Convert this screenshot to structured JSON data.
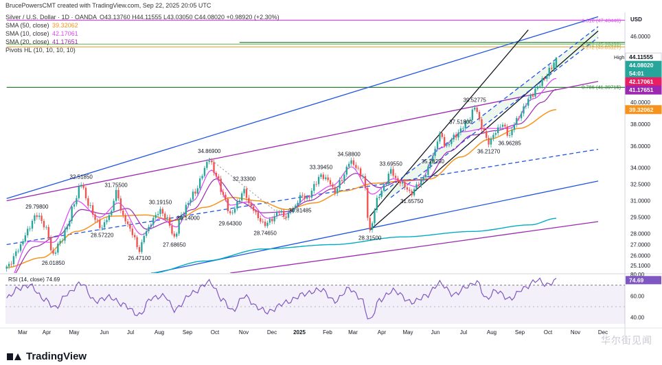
{
  "header": {
    "title": "Silver / U.S. Dollar · 1D · OANDA",
    "creator": "BrucePowersCMT created with TradingView.com, Sep 22, 2025 20:05 UTC",
    "ohlc": "O43.13760 H44.11555 L43.03050 C44.08020 +0.98920 (+2.30%)",
    "studies": [
      {
        "label": "SMA (50, close)",
        "value": "39.32062",
        "color": "#f7931a"
      },
      {
        "label": "SMA (10, close)",
        "value": "42.17061",
        "color": "#d946ef"
      },
      {
        "label": "SMA (20, close)",
        "value": "41.17651",
        "color": "#9c27b0"
      },
      {
        "label": "Pivots HL (10, 10, 10, 10)",
        "value": "",
        "color": "#333333"
      }
    ]
  },
  "brand": "TradingView",
  "watermark": "华尔街见闻",
  "chart_data": {
    "type": "candlestick",
    "currency": "USD",
    "ylim": [
      24.4,
      48.2
    ],
    "x_ticks": [
      "Mar",
      "Apr",
      "May",
      "Jun",
      "Jul",
      "Aug",
      "Sep",
      "Oct",
      "Nov",
      "Dec",
      "2025",
      "Feb",
      "Mar",
      "Apr",
      "May",
      "Jun",
      "Jul",
      "Aug",
      "Sep",
      "Oct",
      "Nov",
      "Dec"
    ],
    "y_ticks": [
      25.1,
      26.0,
      27.0,
      28.0,
      29.5,
      31.0,
      32.5,
      34.0,
      36.0,
      38.0,
      40.0,
      42.0,
      44.0,
      46.0
    ],
    "y_tick_labels": [
      "25.1000",
      "26.0000",
      "27.0000",
      "28.0000",
      "29.5000",
      "31.0000",
      "32.5000",
      "34.0000",
      "36.0000",
      "38.0000",
      "40.0000",
      "42.0000",
      "44.0000",
      "46.0000"
    ],
    "anchors": [
      [
        0,
        24.9
      ],
      [
        5,
        26.5
      ],
      [
        9,
        28.3
      ],
      [
        13,
        29.8
      ],
      [
        17,
        28.4
      ],
      [
        20,
        26.0
      ],
      [
        23,
        27.3
      ],
      [
        26,
        28.6
      ],
      [
        29,
        30.9
      ],
      [
        32,
        32.5185
      ],
      [
        35,
        30.8
      ],
      [
        38,
        29.3
      ],
      [
        41,
        28.5722
      ],
      [
        44,
        29.6
      ],
      [
        47,
        31.755
      ],
      [
        50,
        29.6
      ],
      [
        54,
        28.0
      ],
      [
        57,
        26.471
      ],
      [
        60,
        28.3
      ],
      [
        63,
        29.3
      ],
      [
        66,
        30.1915
      ],
      [
        69,
        29.2
      ],
      [
        72,
        27.6865
      ],
      [
        75,
        29.6
      ],
      [
        78,
        30.9
      ],
      [
        81,
        31.8
      ],
      [
        84,
        33.4
      ],
      [
        87,
        34.869
      ],
      [
        90,
        33.2
      ],
      [
        93,
        31.6
      ],
      [
        96,
        29.643
      ],
      [
        99,
        30.8
      ],
      [
        102,
        31.9
      ],
      [
        105,
        30.4
      ],
      [
        108,
        29.5
      ],
      [
        111,
        28.7465
      ],
      [
        114,
        29.4
      ],
      [
        117,
        30.0
      ],
      [
        120,
        29.6
      ],
      [
        123,
        30.2
      ],
      [
        126,
        31.4
      ],
      [
        129,
        31.2
      ],
      [
        132,
        32.3
      ],
      [
        135,
        33.3945
      ],
      [
        138,
        32.8
      ],
      [
        141,
        31.9
      ],
      [
        144,
        32.9
      ],
      [
        147,
        34.588
      ],
      [
        150,
        34.1
      ],
      [
        153,
        33.2
      ],
      [
        156,
        28.315
      ],
      [
        159,
        31.0
      ],
      [
        162,
        32.4
      ],
      [
        165,
        33.6955
      ],
      [
        168,
        32.8
      ],
      [
        171,
        32.3
      ],
      [
        174,
        31.6575
      ],
      [
        177,
        32.6
      ],
      [
        180,
        33.4
      ],
      [
        183,
        35.2
      ],
      [
        186,
        37.0
      ],
      [
        189,
        36.0
      ],
      [
        192,
        36.8
      ],
      [
        195,
        37.5
      ],
      [
        198,
        38.3
      ],
      [
        201,
        39.5278
      ],
      [
        204,
        37.8
      ],
      [
        207,
        36.2127
      ],
      [
        210,
        37.4
      ],
      [
        213,
        37.9
      ],
      [
        216,
        36.96285
      ],
      [
        219,
        38.4
      ],
      [
        222,
        39.4
      ],
      [
        225,
        40.6
      ],
      [
        228,
        41.3
      ],
      [
        231,
        42.3
      ],
      [
        234,
        43.1
      ],
      [
        236,
        44.0802
      ]
    ],
    "last_bar_ohlc": {
      "open": 43.1376,
      "high": 44.11555,
      "low": 43.0305,
      "close": 44.0802
    },
    "sma10_anchors": [
      [
        0,
        23.4
      ],
      [
        10,
        27.3
      ],
      [
        20,
        27.2
      ],
      [
        30,
        31.0
      ],
      [
        40,
        29.5
      ],
      [
        48,
        30.8
      ],
      [
        58,
        27.9
      ],
      [
        66,
        29.4
      ],
      [
        73,
        28.6
      ],
      [
        80,
        31.0
      ],
      [
        88,
        33.8
      ],
      [
        96,
        30.6
      ],
      [
        104,
        30.9
      ],
      [
        112,
        29.4
      ],
      [
        120,
        29.8
      ],
      [
        130,
        31.4
      ],
      [
        140,
        32.4
      ],
      [
        148,
        34.1
      ],
      [
        157,
        31.6
      ],
      [
        166,
        33.0
      ],
      [
        176,
        32.3
      ],
      [
        186,
        35.8
      ],
      [
        196,
        37.3
      ],
      [
        206,
        37.6
      ],
      [
        216,
        37.6
      ],
      [
        226,
        40.3
      ],
      [
        236,
        42.17061
      ]
    ],
    "sma20_anchors": [
      [
        0,
        23.6
      ],
      [
        12,
        26.8
      ],
      [
        22,
        27.8
      ],
      [
        32,
        30.2
      ],
      [
        42,
        29.8
      ],
      [
        52,
        30.3
      ],
      [
        60,
        28.4
      ],
      [
        70,
        29.1
      ],
      [
        80,
        30.2
      ],
      [
        90,
        33.0
      ],
      [
        100,
        30.9
      ],
      [
        110,
        29.9
      ],
      [
        120,
        30.0
      ],
      [
        130,
        31.0
      ],
      [
        140,
        32.1
      ],
      [
        150,
        33.5
      ],
      [
        160,
        32.2
      ],
      [
        170,
        32.9
      ],
      [
        180,
        32.9
      ],
      [
        190,
        35.5
      ],
      [
        200,
        37.0
      ],
      [
        210,
        37.4
      ],
      [
        220,
        38.0
      ],
      [
        230,
        40.0
      ],
      [
        236,
        41.17651
      ]
    ],
    "sma50_anchors": [
      [
        0,
        24.9
      ],
      [
        15,
        25.8
      ],
      [
        30,
        28.2
      ],
      [
        45,
        29.6
      ],
      [
        60,
        29.7
      ],
      [
        72,
        29.2
      ],
      [
        85,
        30.4
      ],
      [
        97,
        31.3
      ],
      [
        108,
        31.0
      ],
      [
        120,
        30.2
      ],
      [
        132,
        30.8
      ],
      [
        145,
        31.9
      ],
      [
        158,
        32.6
      ],
      [
        170,
        32.8
      ],
      [
        182,
        33.0
      ],
      [
        195,
        35.0
      ],
      [
        207,
        36.6
      ],
      [
        220,
        37.6
      ],
      [
        236,
        39.32062
      ]
    ],
    "long_ma_anchors": [
      [
        62,
        24.4
      ],
      [
        85,
        25.5
      ],
      [
        110,
        26.6
      ],
      [
        140,
        27.0
      ],
      [
        170,
        27.7
      ],
      [
        200,
        28.2
      ],
      [
        225,
        28.8
      ],
      [
        236,
        29.4
      ]
    ],
    "rsi": {
      "label": "RSI (14, close)",
      "value": "74.69",
      "ylim": [
        34,
        80
      ],
      "ticks": [
        40,
        60,
        80
      ],
      "upper": 70,
      "lower": 30,
      "anchors": [
        [
          0,
          58
        ],
        [
          5,
          67
        ],
        [
          10,
          70
        ],
        [
          16,
          57
        ],
        [
          21,
          49
        ],
        [
          26,
          62
        ],
        [
          32,
          72
        ],
        [
          38,
          55
        ],
        [
          44,
          59
        ],
        [
          50,
          52
        ],
        [
          57,
          42
        ],
        [
          62,
          58
        ],
        [
          68,
          60
        ],
        [
          72,
          47
        ],
        [
          80,
          63
        ],
        [
          87,
          73
        ],
        [
          93,
          56
        ],
        [
          97,
          46
        ],
        [
          102,
          60
        ],
        [
          108,
          49
        ],
        [
          112,
          45
        ],
        [
          120,
          54
        ],
        [
          128,
          62
        ],
        [
          135,
          66
        ],
        [
          141,
          55
        ],
        [
          147,
          67
        ],
        [
          152,
          58
        ],
        [
          156,
          37
        ],
        [
          160,
          56
        ],
        [
          166,
          65
        ],
        [
          174,
          54
        ],
        [
          180,
          60
        ],
        [
          186,
          72
        ],
        [
          192,
          61
        ],
        [
          198,
          69
        ],
        [
          202,
          73
        ],
        [
          206,
          57
        ],
        [
          210,
          65
        ],
        [
          216,
          57
        ],
        [
          222,
          67
        ],
        [
          228,
          75
        ],
        [
          232,
          70
        ],
        [
          236,
          74.69
        ]
      ]
    },
    "trendlines": [
      {
        "name": "Upper Channel",
        "color": "#1e53e5",
        "style": "solid",
        "from": [
          0,
          31.2
        ],
        "to": [
          254,
          47.8
        ]
      },
      {
        "name": "Lower Channel",
        "color": "#1e53e5",
        "style": "solid",
        "from": [
          63,
          24.4
        ],
        "to": [
          254,
          32.8
        ]
      },
      {
        "name": "Dashed Mid",
        "color": "#1e53e5",
        "style": "dashed",
        "from": [
          0,
          27.0
        ],
        "to": [
          254,
          35.7
        ]
      },
      {
        "name": "Purple Upper",
        "color": "#9c27b0",
        "style": "solid",
        "from": [
          0,
          31.0
        ],
        "to": [
          254,
          41.9
        ]
      },
      {
        "name": "Purple Lower",
        "color": "#9c27b0",
        "style": "solid",
        "from": [
          96,
          24.4
        ],
        "to": [
          254,
          29.1
        ]
      },
      {
        "name": "Rising Channel Top",
        "color": "#131722",
        "style": "solid",
        "from": [
          156,
          29.6
        ],
        "to": [
          224,
          46.6
        ]
      },
      {
        "name": "Rising Channel Bottom",
        "color": "#131722",
        "style": "solid",
        "from": [
          156,
          28.315
        ],
        "to": [
          254,
          46.5
        ]
      },
      {
        "name": "Rising Channel Upper Dashed",
        "color": "#1e53e5",
        "style": "dashed",
        "from": [
          160,
          31.5
        ],
        "to": [
          254,
          46.9
        ]
      },
      {
        "name": "Rising Channel Mid Dashed",
        "color": "#1e53e5",
        "style": "dashed",
        "from": [
          165,
          31.3
        ],
        "to": [
          254,
          45.9
        ]
      },
      {
        "name": "Declining Dotted",
        "color": "#8a8a8a",
        "style": "dotted",
        "from": [
          87,
          34.869
        ],
        "to": [
          120,
          29.3
        ]
      }
    ],
    "horizontal_lines": [
      {
        "name": "Resistance",
        "color": "#2e7d32",
        "value": 41.35,
        "from": 0
      },
      {
        "name": "Fib 1.618",
        "color": "#d946ef",
        "value": 47.48,
        "from": 0
      },
      {
        "name": "Fib Band A",
        "color": "#e8a33b",
        "value": 45.05,
        "from": 0
      },
      {
        "name": "Fib Band B",
        "color": "#6bbf59",
        "value": 45.3,
        "from": 0
      },
      {
        "name": "Fib Band C",
        "color": "#2e7d32",
        "value": 45.45,
        "from": 100
      }
    ],
    "price_labels": [
      {
        "text": "32.51850",
        "i": 32,
        "v": 32.5185,
        "pos": "above"
      },
      {
        "text": "29.79800",
        "i": 13,
        "v": 29.798,
        "pos": "above"
      },
      {
        "text": "31.75500",
        "i": 47,
        "v": 31.755,
        "pos": "above"
      },
      {
        "text": "30.19150",
        "i": 66,
        "v": 30.1915,
        "pos": "above"
      },
      {
        "text": "34.86900",
        "i": 87,
        "v": 34.869,
        "pos": "above"
      },
      {
        "text": "32.33300",
        "i": 102,
        "v": 32.333,
        "pos": "above"
      },
      {
        "text": "33.39450",
        "i": 135,
        "v": 33.3945,
        "pos": "above"
      },
      {
        "text": "34.58800",
        "i": 147,
        "v": 34.588,
        "pos": "above"
      },
      {
        "text": "33.69550",
        "i": 165,
        "v": 33.6955,
        "pos": "above"
      },
      {
        "text": "37.51800",
        "i": 195,
        "v": 37.518,
        "pos": "above"
      },
      {
        "text": "39.52775",
        "i": 201,
        "v": 39.52775,
        "pos": "above"
      },
      {
        "text": "26.01850",
        "i": 20,
        "v": 26.0185,
        "pos": "below"
      },
      {
        "text": "28.57220",
        "i": 41,
        "v": 28.5722,
        "pos": "below"
      },
      {
        "text": "26.47100",
        "i": 57,
        "v": 26.471,
        "pos": "below"
      },
      {
        "text": "27.68650",
        "i": 72,
        "v": 27.6865,
        "pos": "below"
      },
      {
        "text": "29.64300",
        "i": 96,
        "v": 29.643,
        "pos": "below"
      },
      {
        "text": "28.74650",
        "i": 111,
        "v": 28.7465,
        "pos": "below"
      },
      {
        "text": "28.31500",
        "i": 156,
        "v": 28.315,
        "pos": "below"
      },
      {
        "text": "31.65750",
        "i": 174,
        "v": 31.6575,
        "pos": "below"
      },
      {
        "text": "36.21270",
        "i": 207,
        "v": 36.2127,
        "pos": "below"
      },
      {
        "text": "36.96285",
        "i": 216,
        "v": 36.96285,
        "pos": "below"
      },
      {
        "text": "30.14000",
        "i": 78,
        "v": 30.14,
        "pos": "below"
      },
      {
        "text": "30.81485",
        "i": 126,
        "v": 30.81485,
        "pos": "below"
      },
      {
        "text": "35.28250",
        "i": 183,
        "v": 35.2825,
        "pos": "below"
      }
    ],
    "fib_labels": [
      {
        "text": "1.618 (47.48446)",
        "v": 47.484,
        "color": "#d946ef"
      },
      {
        "text": "1.272 (45.28432)",
        "v": 45.284,
        "color": "#6bbf59"
      },
      {
        "text": "1.272 (45.05127)",
        "v": 45.051,
        "color": "#e8a33b"
      },
      {
        "text": "0.786 (41.39715)",
        "v": 41.397,
        "color": "#2e7d32"
      }
    ],
    "axis_badges": [
      {
        "text": "44.11555",
        "v": 44.11555,
        "bg": "#ffffff",
        "fg": "#131722"
      },
      {
        "text": "High",
        "v": 44.11555,
        "bg": "#ffffff",
        "fg": "#131722"
      },
      {
        "text": "44.08020",
        "v": 43.75,
        "bg": "#26a69a",
        "fg": "#ffffff"
      },
      {
        "text": "54:01",
        "v": 43.35,
        "bg": "#26a69a",
        "fg": "#ffffff"
      },
      {
        "text": "42.17061",
        "v": 42.17061,
        "bg": "#e91e63",
        "fg": "#ffffff"
      },
      {
        "text": "41.17651",
        "v": 41.17651,
        "bg": "#9c27b0",
        "fg": "#ffffff"
      },
      {
        "text": "39.32062",
        "v": 39.32062,
        "bg": "#f7931a",
        "fg": "#ffffff"
      }
    ]
  }
}
